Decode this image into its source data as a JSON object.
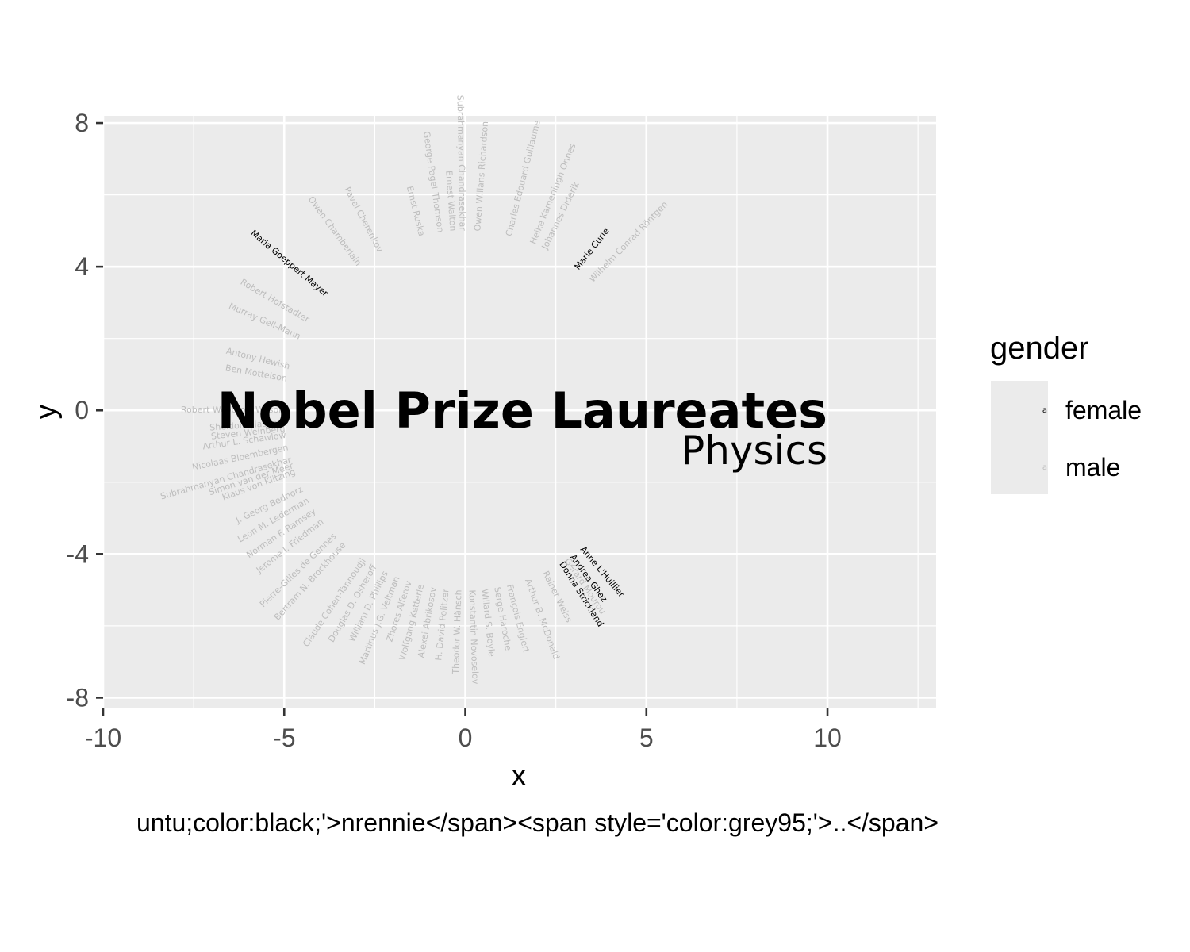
{
  "chart_data": {
    "type": "scatter",
    "title": "",
    "xlabel": "x",
    "ylabel": "y",
    "xlim": [
      -10,
      13
    ],
    "ylim": [
      -8.3,
      8.2
    ],
    "x_ticks": [
      -10,
      -5,
      0,
      5,
      10
    ],
    "x_tick_labels": [
      "-10",
      "-5",
      "0",
      "5",
      "10"
    ],
    "y_ticks": [
      -8,
      -4,
      0,
      4,
      8
    ],
    "y_tick_labels": [
      "-8",
      "-4",
      "0",
      "4",
      "8"
    ],
    "grid": true,
    "legend": {
      "title": "gender",
      "placement": "right",
      "entries": [
        {
          "label": "female",
          "color": "#000000"
        },
        {
          "label": "male",
          "color": "#bdbdbd"
        }
      ]
    },
    "annotations": [
      {
        "text": "Nobel Prize Laureates",
        "x": 10,
        "y": 0,
        "align": "right"
      },
      {
        "text": "Physics",
        "x": 10,
        "y": -1.1,
        "align": "right"
      }
    ],
    "series": [
      {
        "name": "female",
        "color": "#000000",
        "points": [
          {
            "label": "Marie Curie",
            "angle": 52,
            "radius": 5.7
          },
          {
            "label": "Maria Goeppert Mayer",
            "angle": 140,
            "radius": 5.9
          },
          {
            "label": "Donna Strickland",
            "angle": -58,
            "radius": 5.5
          },
          {
            "label": "Andrea Ghez",
            "angle": -54,
            "radius": 5.8
          },
          {
            "label": "Anne L'Huillier",
            "angle": -50,
            "radius": 6.0
          }
        ]
      },
      {
        "name": "male",
        "color": "#bdbdbd",
        "points": [
          {
            "label": "Wilhelm Conrad Röntgen",
            "angle": 46,
            "radius": 6.8
          },
          {
            "label": "Johannes Diderik",
            "angle": 64,
            "radius": 7.2
          },
          {
            "label": "Heike Kamerlingh Onnes",
            "angle": 68,
            "radius": 6.6
          },
          {
            "label": "Charles Edouard Guillaume",
            "angle": 76,
            "radius": 7.0
          },
          {
            "label": "Owen Willans Richardson",
            "angle": 86,
            "radius": 7.4
          },
          {
            "label": "Subrahmanyan Chandrasekhar",
            "angle": 91,
            "radius": 7.6
          },
          {
            "label": "Ernest Walton",
            "angle": 94,
            "radius": 6.4
          },
          {
            "label": "George Paget Thomson",
            "angle": 98,
            "radius": 7.2
          },
          {
            "label": "Ernst Ruska",
            "angle": 104,
            "radius": 6.8
          },
          {
            "label": "Pavel Cherenkov",
            "angle": 118,
            "radius": 6.6
          },
          {
            "label": "Owen Chamberlain",
            "angle": 126,
            "radius": 6.4
          },
          {
            "label": "Robert Hofstadter",
            "angle": 150,
            "radius": 6.3
          },
          {
            "label": "Murray Gell-Mann",
            "angle": 156,
            "radius": 6.4
          },
          {
            "label": "Antony Hewish",
            "angle": 166,
            "radius": 6.0
          },
          {
            "label": "Ben Mottelson",
            "angle": 170,
            "radius": 6.2
          },
          {
            "label": "Robert Woodrow Wilson",
            "angle": 180,
            "radius": 6.9
          },
          {
            "label": "Sheldon Glashow",
            "angle": 184,
            "radius": 6.0
          },
          {
            "label": "Steven Weinberg",
            "angle": 186,
            "radius": 5.9
          },
          {
            "label": "Arthur L. Schawlow",
            "angle": 188,
            "radius": 6.3
          },
          {
            "label": "Nicolaas Bloembergen",
            "angle": 192,
            "radius": 6.5
          },
          {
            "label": "Subrahmanyan Chandrasekhar",
            "angle": 196,
            "radius": 8.0
          },
          {
            "label": "Simon van der Meer",
            "angle": 198,
            "radius": 6.6
          },
          {
            "label": "Klaus von Klitzing",
            "angle": 200,
            "radius": 6.1
          },
          {
            "label": "J. Georg Bednorz",
            "angle": 206,
            "radius": 6.3
          },
          {
            "label": "Leon M. Lederman",
            "angle": 210,
            "radius": 6.2
          },
          {
            "label": "Norman F. Ramsey",
            "angle": 214,
            "radius": 6.1
          },
          {
            "label": "Jerome I. Friedman",
            "angle": 218,
            "radius": 6.2
          },
          {
            "label": "Pierre-Gilles de Gennes",
            "angle": 224,
            "radius": 6.8
          },
          {
            "label": "Bertram N. Brockhouse",
            "angle": 228,
            "radius": 6.9
          },
          {
            "label": "Claude Cohen-Tannoudji",
            "angle": 236,
            "radius": 6.7
          },
          {
            "label": "Douglas D. Osheroff",
            "angle": 240,
            "radius": 6.2
          },
          {
            "label": "William D. Phillips",
            "angle": 244,
            "radius": 6.0
          },
          {
            "label": "Martinus J.G. Veltman",
            "angle": 248,
            "radius": 6.6
          },
          {
            "label": "Zhores Alferov",
            "angle": 252,
            "radius": 6.2
          },
          {
            "label": "Wolfgang Ketterle",
            "angle": 256,
            "radius": 6.6
          },
          {
            "label": "Alexei Abrikosov",
            "angle": 260,
            "radius": 6.5
          },
          {
            "label": "H. David Politzer",
            "angle": 264,
            "radius": 6.4
          },
          {
            "label": "Theodor W. Hänsch",
            "angle": 268,
            "radius": 6.6
          },
          {
            "label": "Konstantin Novoselov",
            "angle": 272,
            "radius": 7.4
          },
          {
            "label": "Willard S. Boyle",
            "angle": 276,
            "radius": 6.8
          },
          {
            "label": "Serge Haroche",
            "angle": 280,
            "radius": 6.2
          },
          {
            "label": "François Englert",
            "angle": 284,
            "radius": 6.4
          },
          {
            "label": "Arthur B. McDonald",
            "angle": 290,
            "radius": 6.6
          },
          {
            "label": "Rainer Weiss",
            "angle": 296,
            "radius": 6.2
          },
          {
            "label": "Gérard Mourou",
            "angle": 304,
            "radius": 6.0
          }
        ]
      }
    ]
  },
  "caption": "untu;color:black;'>nrennie</span><span style='color:grey95;'>..</span>"
}
